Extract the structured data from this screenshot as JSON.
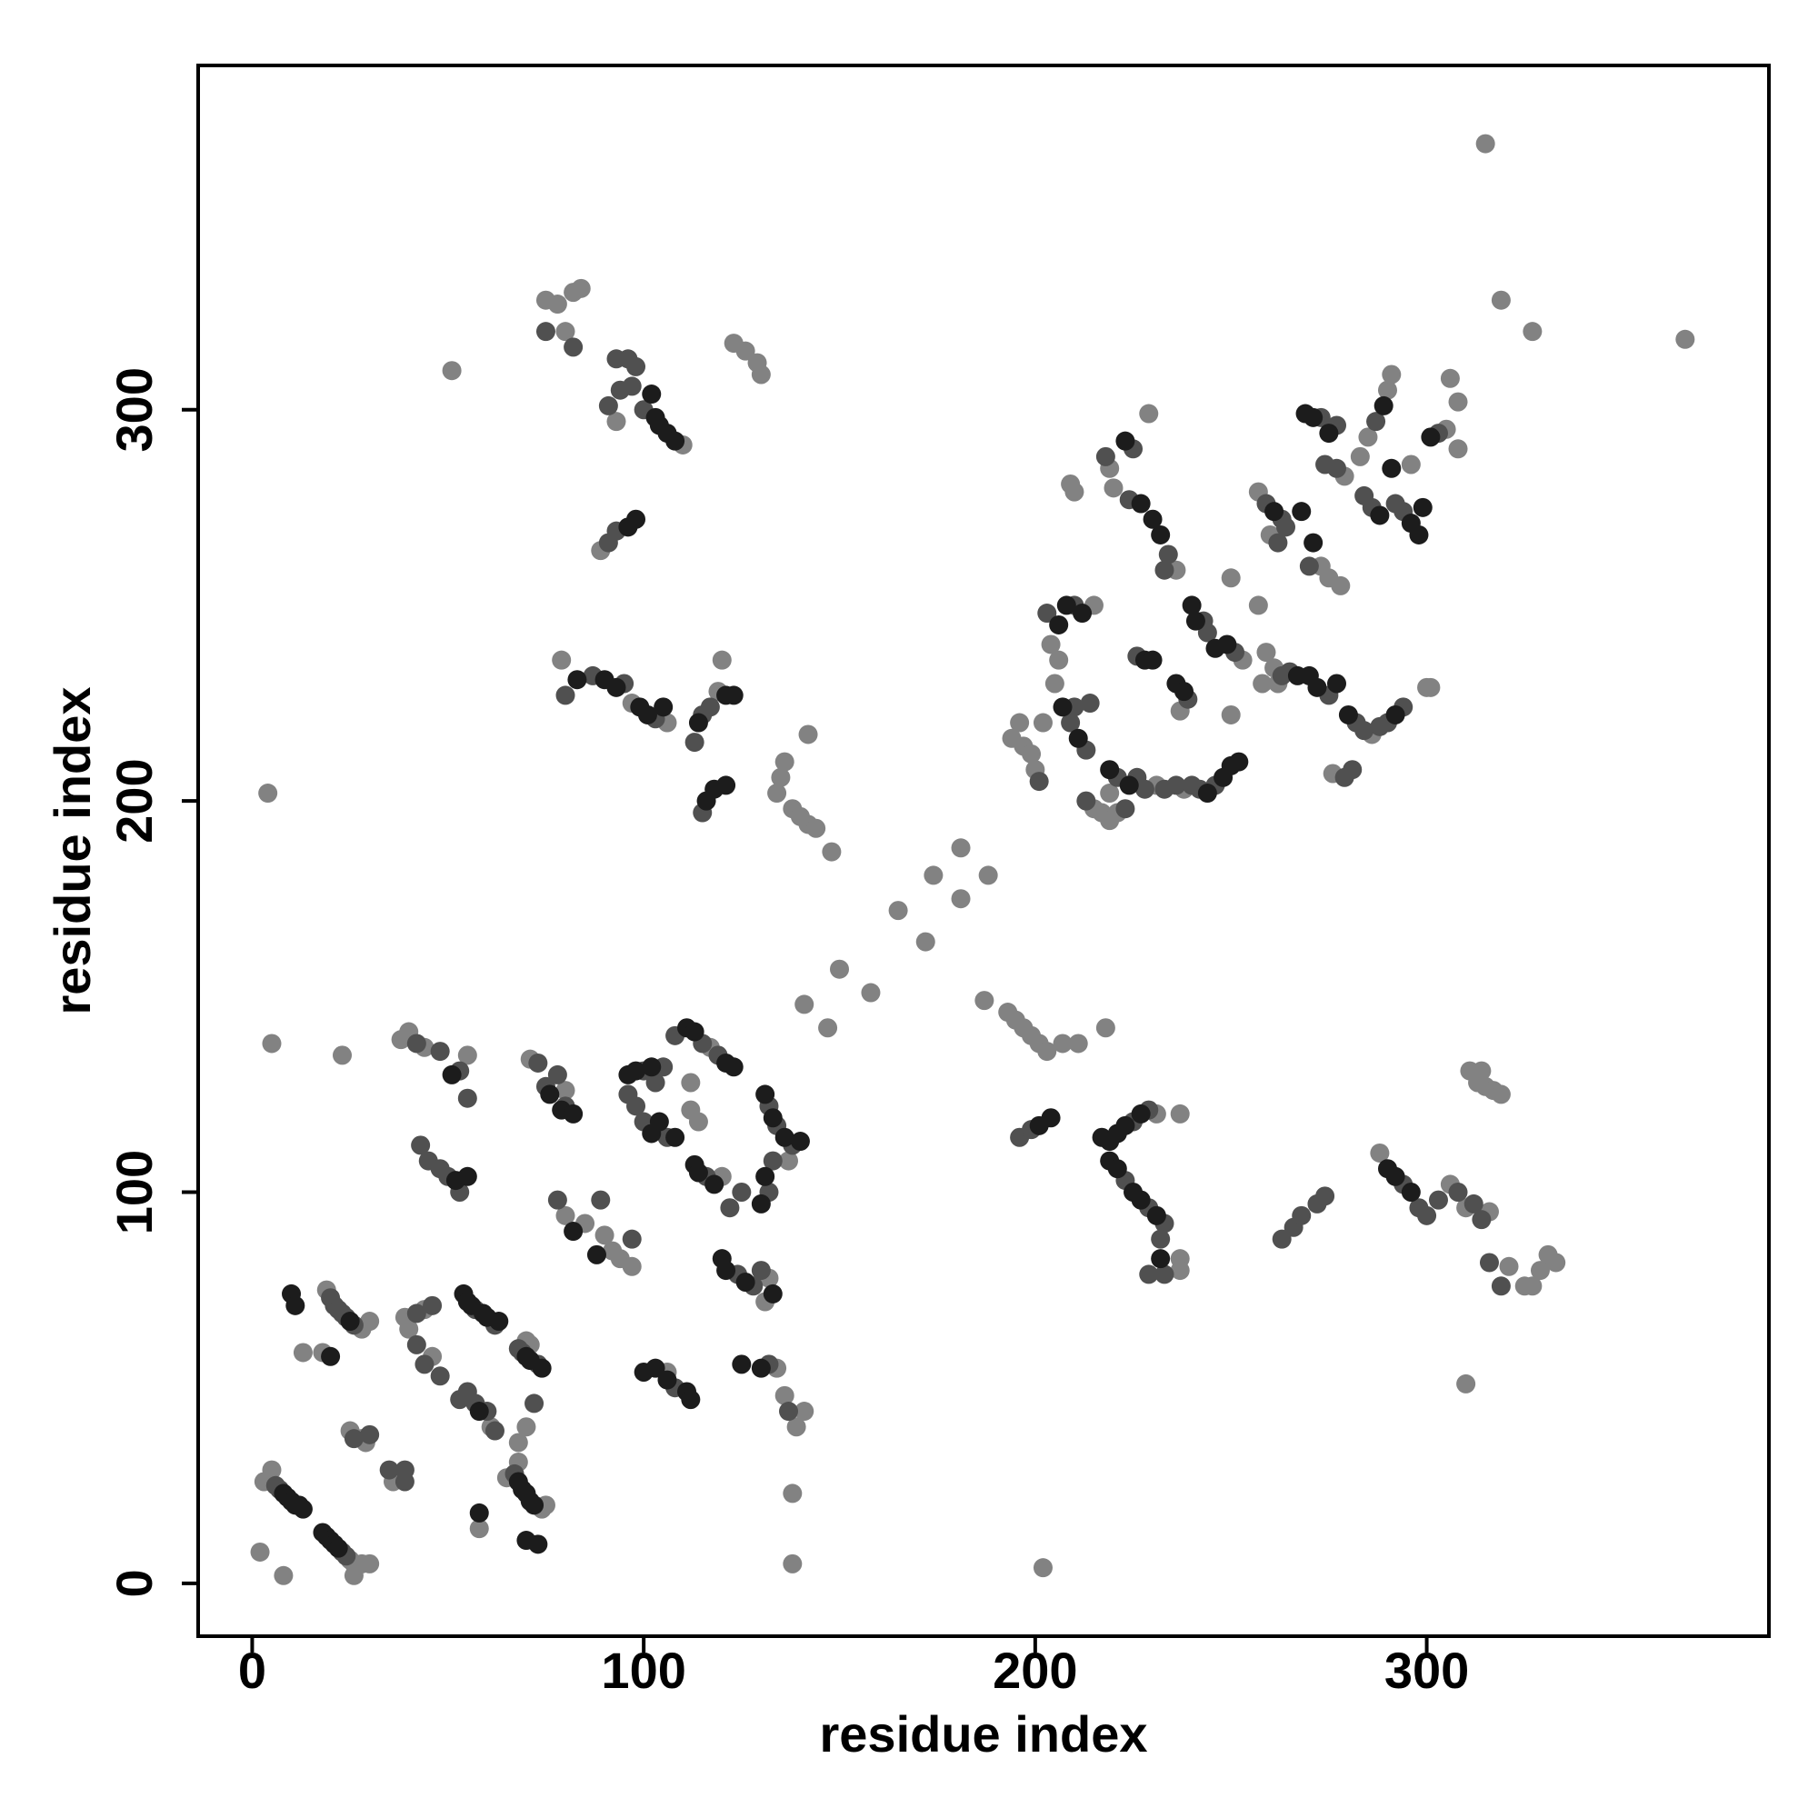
{
  "chart_data": {
    "type": "scatter",
    "x_label": "residue index",
    "y_label": "residue index",
    "xlim": [
      -13.8,
      387.4
    ],
    "ylim": [
      -13.5,
      388
    ],
    "xticks": [
      0,
      100,
      200,
      300
    ],
    "yticks": [
      0,
      100,
      200,
      300
    ],
    "series": [
      {
        "color": "#828282",
        "x": [
          3,
          5,
          25,
          26,
          28,
          30,
          26,
          2,
          8,
          19,
          28,
          30,
          13,
          18,
          25,
          28,
          29,
          36,
          40,
          46,
          39,
          44,
          61,
          58,
          70,
          71,
          65,
          74,
          75,
          68,
          68,
          70,
          38,
          40,
          44,
          55,
          71,
          80,
          80,
          85,
          90,
          92,
          94,
          97,
          117,
          112,
          114,
          112,
          120,
          137,
          106,
          132,
          131,
          134,
          136,
          139,
          141,
          138,
          138,
          5,
          23,
          4,
          75,
          78,
          82,
          84,
          80,
          51,
          110,
          93,
          89,
          123,
          126,
          129,
          130,
          79,
          97,
          106,
          119,
          120,
          136,
          135,
          138,
          140,
          142,
          144,
          148,
          142,
          134,
          141,
          147,
          150,
          158,
          165,
          172,
          174,
          181,
          181,
          188,
          187,
          193,
          195,
          197,
          199,
          201,
          203,
          207,
          211,
          218,
          202,
          231,
          237,
          237,
          237,
          288,
          306,
          310,
          316,
          310,
          311,
          313,
          315,
          317,
          319,
          314,
          321,
          325,
          327,
          329,
          331,
          333,
          315,
          319,
          327,
          366,
          219,
          220,
          229,
          236,
          209,
          210,
          215,
          204,
          206,
          205,
          194,
          197,
          199,
          200,
          196,
          202,
          215,
          217,
          219,
          221,
          219,
          231,
          238,
          237,
          253,
          250,
          250,
          257,
          257,
          260,
          259,
          261,
          286,
          258,
          262,
          276,
          300,
          301,
          279,
          283,
          285,
          290,
          291,
          273,
          275,
          278,
          296,
          306,
          308,
          305,
          308
        ],
        "y": [
          26,
          29,
          6,
          5,
          5,
          5,
          2,
          8,
          2,
          75,
          65,
          67,
          59,
          59,
          39,
          37,
          36,
          26,
          65,
          58,
          68,
          70,
          40,
          14,
          62,
          61,
          27,
          19,
          20,
          31,
          36,
          40,
          139,
          141,
          137,
          135,
          134,
          126,
          94,
          92,
          89,
          85,
          83,
          81,
          137,
          128,
          118,
          121,
          104,
          108,
          54,
          78,
          72,
          55,
          48,
          40,
          44,
          23,
          5,
          138,
          135,
          202,
          328,
          327,
          330,
          331,
          320,
          310,
          291,
          297,
          264,
          317,
          315,
          312,
          309,
          236,
          225,
          220,
          228,
          236,
          210,
          206,
          198,
          196,
          194,
          193,
          187,
          217,
          202,
          148,
          142,
          157,
          151,
          172,
          164,
          181,
          175,
          188,
          181,
          149,
          146,
          144,
          142,
          140,
          138,
          136,
          138,
          138,
          142,
          4,
          120,
          120,
          83,
          80,
          110,
          102,
          96,
          95,
          51,
          131,
          128,
          127,
          126,
          125,
          131,
          81,
          76,
          76,
          80,
          84,
          82,
          368,
          328,
          320,
          318,
          285,
          280,
          299,
          259,
          281,
          279,
          250,
          240,
          236,
          230,
          216,
          214,
          212,
          208,
          220,
          220,
          198,
          197,
          195,
          197,
          202,
          204,
          203,
          223,
          236,
          222,
          257,
          250,
          279,
          268,
          238,
          234,
          217,
          230,
          230,
          207,
          229,
          229,
          283,
          288,
          293,
          305,
          309,
          260,
          257,
          255,
          286,
          308,
          302,
          295,
          290
        ]
      },
      {
        "color": "#505050",
        "x": [
          6,
          7,
          23,
          24,
          20,
          21,
          22,
          23,
          24,
          26,
          26,
          30,
          35,
          39,
          39,
          42,
          44,
          48,
          42,
          46,
          57,
          62,
          53,
          55,
          57,
          60,
          62,
          68,
          69,
          73,
          67,
          72,
          42,
          48,
          53,
          55,
          43,
          45,
          48,
          50,
          53,
          73,
          75,
          78,
          80,
          78,
          89,
          97,
          100,
          103,
          96,
          98,
          100,
          106,
          105,
          108,
          115,
          119,
          116,
          122,
          125,
          132,
          134,
          138,
          132,
          133,
          108,
          124,
          128,
          130,
          132,
          137,
          75,
          82,
          93,
          96,
          98,
          94,
          97,
          100,
          91,
          91,
          93,
          80,
          87,
          95,
          103,
          113,
          115,
          117,
          115,
          196,
          199,
          225,
          229,
          223,
          229,
          233,
          232,
          229,
          233,
          263,
          266,
          268,
          272,
          274,
          294,
          298,
          300,
          303,
          308,
          312,
          314,
          316,
          319,
          218,
          225,
          224,
          234,
          233,
          203,
          210,
          209,
          213,
          210,
          214,
          201,
          213,
          223,
          221,
          226,
          228,
          233,
          236,
          240,
          242,
          246,
          226,
          239,
          243,
          244,
          251,
          259,
          263,
          264,
          262,
          263,
          265,
          275,
          282,
          284,
          288,
          290,
          294,
          279,
          281,
          273,
          277,
          274,
          277,
          287,
          270,
          284,
          286,
          292,
          294,
          303
        ],
        "y": [
          25,
          24,
          8,
          7,
          73,
          71,
          70,
          69,
          68,
          66,
          37,
          38,
          29,
          29,
          26,
          61,
          56,
          53,
          69,
          71,
          70,
          66,
          47,
          49,
          46,
          44,
          39,
          60,
          59,
          56,
          28,
          46,
          138,
          136,
          131,
          124,
          112,
          108,
          106,
          104,
          100,
          133,
          127,
          130,
          122,
          98,
          98,
          88,
          131,
          128,
          125,
          122,
          118,
          114,
          132,
          140,
          138,
          135,
          104,
          96,
          100,
          122,
          117,
          112,
          100,
          108,
          50,
          79,
          76,
          80,
          56,
          44,
          320,
          316,
          313,
          313,
          311,
          305,
          306,
          300,
          301,
          266,
          269,
          227,
          232,
          230,
          221,
          215,
          222,
          224,
          197,
          114,
          116,
          118,
          121,
          103,
          96,
          92,
          88,
          79,
          79,
          88,
          91,
          94,
          97,
          99,
          102,
          96,
          94,
          98,
          100,
          97,
          93,
          82,
          76,
          288,
          290,
          277,
          263,
          259,
          248,
          250,
          220,
          213,
          224,
          225,
          205,
          200,
          198,
          206,
          206,
          203,
          203,
          204,
          204,
          203,
          204,
          237,
          226,
          246,
          243,
          238,
          276,
          272,
          270,
          266,
          232,
          233,
          227,
          220,
          218,
          219,
          220,
          224,
          206,
          208,
          298,
          296,
          286,
          285,
          297,
          260,
          278,
          275,
          276,
          274,
          294
        ]
      },
      {
        "color": "#1c1c1c",
        "x": [
          8,
          9,
          10,
          11,
          12,
          13,
          18,
          19,
          20,
          21,
          22,
          10,
          11,
          25,
          20,
          54,
          55,
          56,
          59,
          60,
          63,
          58,
          58,
          70,
          71,
          74,
          68,
          69,
          70,
          71,
          72,
          70,
          73,
          51,
          52,
          55,
          76,
          79,
          82,
          82,
          88,
          96,
          98,
          102,
          104,
          108,
          102,
          111,
          113,
          121,
          123,
          113,
          114,
          118,
          131,
          133,
          136,
          140,
          131,
          130,
          100,
          103,
          106,
          111,
          112,
          120,
          121,
          126,
          125,
          133,
          130,
          102,
          103,
          104,
          106,
          108,
          96,
          98,
          83,
          90,
          93,
          99,
          101,
          105,
          114,
          121,
          123,
          116,
          118,
          121,
          201,
          204,
          217,
          219,
          221,
          223,
          227,
          219,
          221,
          225,
          227,
          231,
          232,
          290,
          292,
          296,
          223,
          227,
          230,
          232,
          206,
          208,
          212,
          207,
          211,
          219,
          224,
          244,
          248,
          250,
          252,
          228,
          230,
          236,
          238,
          240,
          241,
          246,
          249,
          261,
          268,
          267,
          270,
          272,
          277,
          280,
          292,
          269,
          271,
          275,
          289,
          271,
          288,
          291,
          296,
          298,
          299,
          301
        ],
        "y": [
          23,
          22,
          21,
          20,
          20,
          19,
          13,
          12,
          11,
          10,
          9,
          74,
          71,
          67,
          58,
          74,
          72,
          71,
          69,
          68,
          67,
          44,
          18,
          58,
          57,
          55,
          26,
          24,
          23,
          21,
          20,
          11,
          10,
          130,
          103,
          104,
          125,
          121,
          120,
          90,
          84,
          130,
          131,
          115,
          118,
          114,
          132,
          142,
          141,
          133,
          132,
          107,
          105,
          102,
          125,
          119,
          114,
          113,
          104,
          97,
          54,
          55,
          52,
          49,
          47,
          83,
          80,
          77,
          56,
          74,
          55,
          304,
          298,
          296,
          294,
          292,
          270,
          272,
          231,
          231,
          229,
          224,
          222,
          224,
          220,
          227,
          227,
          200,
          203,
          204,
          117,
          119,
          114,
          113,
          115,
          117,
          120,
          108,
          106,
          100,
          98,
          94,
          83,
          106,
          104,
          100,
          292,
          276,
          272,
          268,
          245,
          250,
          248,
          224,
          216,
          208,
          204,
          202,
          206,
          209,
          210,
          236,
          236,
          230,
          228,
          250,
          246,
          239,
          240,
          274,
          274,
          232,
          232,
          229,
          230,
          222,
          222,
          299,
          298,
          294,
          301,
          266,
          273,
          285,
          271,
          268,
          275,
          293
        ]
      }
    ]
  }
}
